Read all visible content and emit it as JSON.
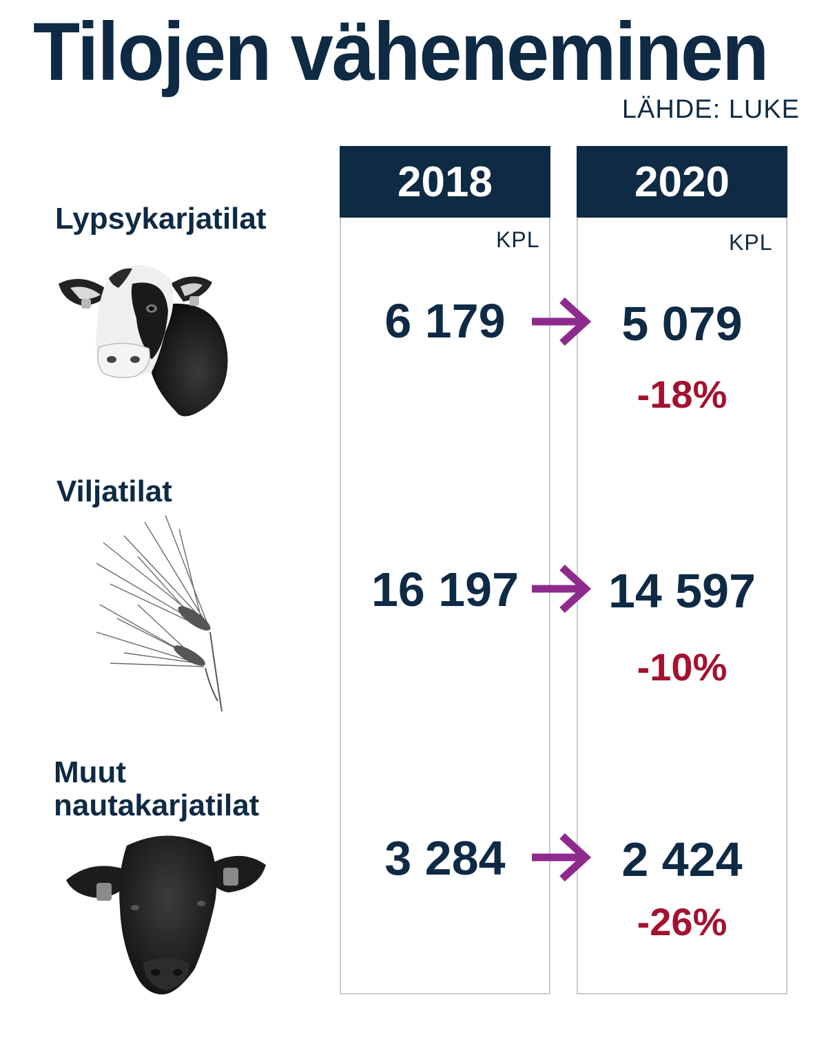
{
  "title": "Tilojen väheneminen",
  "source": "LÄHDE: LUKE",
  "columns": [
    {
      "year": "2018",
      "unit": "KPL"
    },
    {
      "year": "2020",
      "unit": "KPL"
    }
  ],
  "rows": [
    {
      "category": "Lypsykarjatilat",
      "icon": "dairy-cow-icon",
      "v2018": "6 179",
      "v2020": "5 079",
      "change": "-18%"
    },
    {
      "category": "Viljatilat",
      "icon": "grain-ear-icon",
      "v2018": "16 197",
      "v2020": "14 597",
      "change": "-10%"
    },
    {
      "category": "Muut nautakarjatilat",
      "icon": "beef-cattle-icon",
      "v2018": "3 284",
      "v2020": "2 424",
      "change": "-26%"
    }
  ],
  "colors": {
    "navy": "#0e2a44",
    "arrow": "#8e2a8e",
    "change": "#a3122f",
    "frame": "#c4cbd4"
  },
  "chart_data": {
    "type": "table",
    "title": "Tilojen väheneminen",
    "source": "LÄHDE: LUKE",
    "unit": "KPL",
    "columns": [
      "2018",
      "2020"
    ],
    "categories": [
      "Lypsykarjatilat",
      "Viljatilat",
      "Muut nautakarjatilat"
    ],
    "series": [
      {
        "name": "2018",
        "values": [
          6179,
          16197,
          3284
        ]
      },
      {
        "name": "2020",
        "values": [
          5079,
          14597,
          2424
        ]
      }
    ],
    "change_percent": [
      -18,
      -10,
      -26
    ]
  }
}
